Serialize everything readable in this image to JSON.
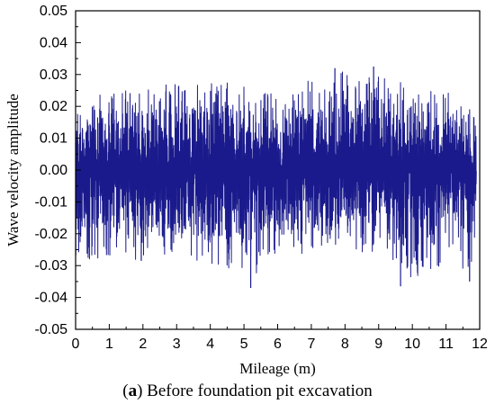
{
  "chart_data": {
    "type": "line",
    "title": "",
    "xlabel": "Mileage (m)",
    "ylabel": "Wave velocity amplitude",
    "xlim": [
      0,
      12
    ],
    "ylim": [
      -0.05,
      0.05
    ],
    "xticks": [
      "0",
      "1",
      "2",
      "3",
      "4",
      "5",
      "6",
      "7",
      "8",
      "9",
      "10",
      "11",
      "12"
    ],
    "yticks": [
      "-0.05",
      "-0.04",
      "-0.03",
      "-0.02",
      "-0.01",
      "0.00",
      "0.01",
      "0.02",
      "0.03",
      "0.04",
      "0.05"
    ],
    "grid": false,
    "series": [
      {
        "color": "#1a1a8c",
        "x_range": [
          0.0,
          11.9
        ],
        "envelope": {
          "x": [
            0,
            1,
            2,
            3,
            4,
            5,
            6,
            7,
            8,
            9,
            10,
            11,
            11.9
          ],
          "upper": [
            0.02,
            0.024,
            0.026,
            0.028,
            0.028,
            0.027,
            0.026,
            0.028,
            0.031,
            0.032,
            0.026,
            0.024,
            0.02
          ],
          "lower": [
            -0.03,
            -0.028,
            -0.029,
            -0.03,
            -0.03,
            -0.035,
            -0.026,
            -0.026,
            -0.026,
            -0.026,
            -0.035,
            -0.034,
            -0.028
          ]
        },
        "peaks": [
          {
            "x": 1.95,
            "y": -0.0285
          },
          {
            "x": 5.2,
            "y": -0.037
          },
          {
            "x": 7.7,
            "y": 0.032
          },
          {
            "x": 8.85,
            "y": 0.0325
          },
          {
            "x": 9.65,
            "y": -0.0365
          },
          {
            "x": 11.7,
            "y": -0.035
          }
        ]
      }
    ]
  },
  "caption": {
    "label": "a",
    "text": "Before foundation pit excavation"
  }
}
